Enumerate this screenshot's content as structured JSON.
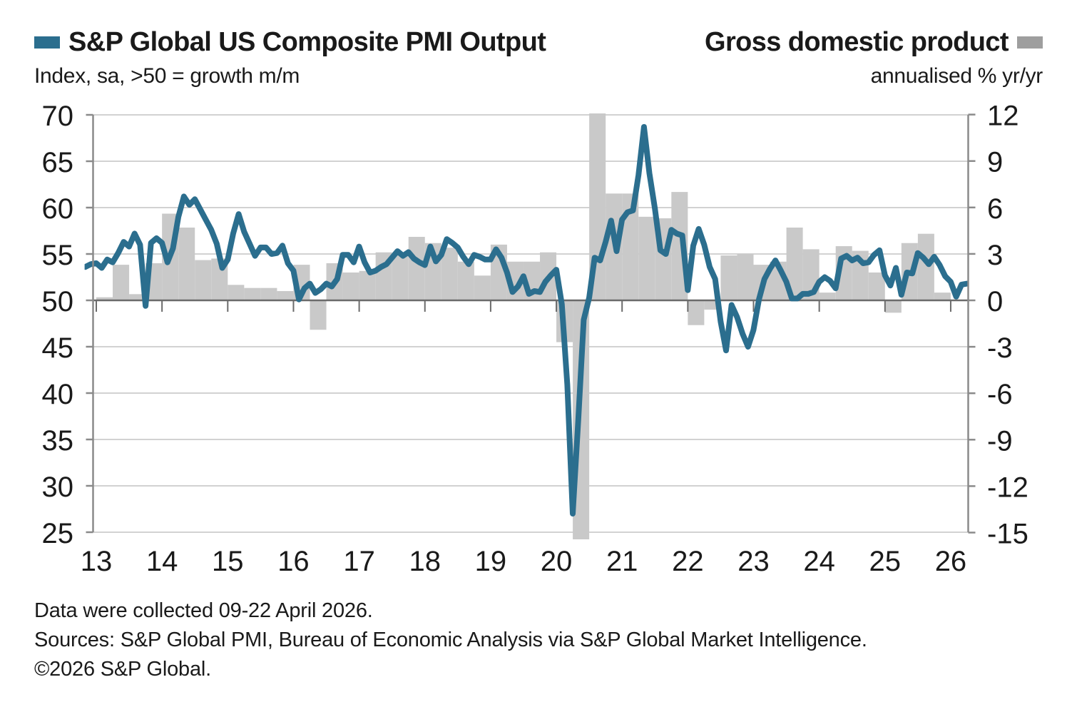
{
  "header": {
    "left": {
      "title": "S&P Global US Composite PMI Output",
      "subtitle": "Index, sa, >50 = growth m/m"
    },
    "right": {
      "title": "Gross domestic product",
      "subtitle": "annualised % yr/yr"
    }
  },
  "footer": {
    "line1": "Data were collected 09-22 April 2026.",
    "line2": "Sources: S&P Global PMI, Bureau of Economic Analysis via S&P Global Market Intelligence.",
    "line3": "©2026 S&P Global."
  },
  "colors": {
    "pmi_line": "#2B6E8E",
    "gdp_bar": "#C9C9C9",
    "gdp_legend_swatch": "#9E9E9E",
    "gridline": "#D2D2D2",
    "zero_line": "#6B6B6B",
    "axis": "#8A8A8A",
    "text": "#1A1A1A"
  },
  "chart_data": {
    "type": "line+bar",
    "title_left": "S&P Global US Composite PMI Output",
    "title_right": "Gross domestic product",
    "left_axis": {
      "label": "Index, sa, >50 = growth m/m",
      "range": [
        25,
        70
      ],
      "ticks": [
        70,
        65,
        60,
        55,
        50,
        45,
        40,
        35,
        30,
        25
      ]
    },
    "right_axis": {
      "label": "annualised % yr/yr",
      "range": [
        -15,
        12
      ],
      "ticks": [
        12,
        9,
        6,
        3,
        0,
        -3,
        -6,
        -9,
        -12,
        -15
      ]
    },
    "x_axis": {
      "tick_labels": [
        "13",
        "14",
        "15",
        "16",
        "17",
        "18",
        "19",
        "20",
        "21",
        "22",
        "23",
        "24",
        "25",
        "26"
      ]
    },
    "grid": true,
    "legend_position": "top",
    "series": [
      {
        "name": "S&P Global US Composite PMI Output",
        "type": "line",
        "axis": "left",
        "frequency": "monthly",
        "start": "2012-11",
        "end": "2026-04",
        "values": [
          53.6,
          53.9,
          54.0,
          53.5,
          54.4,
          54.1,
          55.1,
          56.3,
          55.8,
          57.2,
          56.0,
          49.4,
          56.2,
          56.7,
          56.2,
          54.1,
          55.6,
          59.0,
          61.2,
          60.3,
          60.9,
          59.8,
          58.7,
          57.6,
          56.1,
          53.5,
          54.4,
          57.2,
          59.3,
          57.4,
          56.1,
          54.8,
          55.7,
          55.7,
          55.0,
          55.1,
          55.9,
          54.0,
          53.2,
          50.1,
          51.3,
          51.8,
          50.8,
          51.2,
          51.8,
          51.5,
          52.3,
          54.9,
          54.9,
          54.1,
          55.8,
          54.1,
          53.0,
          53.2,
          53.6,
          53.9,
          54.6,
          55.3,
          54.8,
          55.2,
          54.5,
          54.1,
          53.8,
          55.8,
          54.2,
          54.9,
          56.6,
          56.2,
          55.7,
          54.7,
          53.9,
          54.9,
          54.7,
          54.4,
          54.4,
          55.5,
          54.6,
          53.0,
          50.9,
          51.5,
          52.6,
          50.7,
          51.0,
          50.9,
          52.0,
          52.7,
          53.3,
          49.6,
          40.9,
          27.0,
          37.0,
          47.9,
          50.3,
          54.6,
          54.3,
          56.3,
          58.6,
          55.3,
          58.7,
          59.5,
          59.7,
          63.5,
          68.7,
          63.7,
          59.9,
          55.4,
          55.0,
          57.6,
          57.2,
          57.0,
          51.1,
          55.9,
          57.7,
          56.0,
          53.6,
          52.3,
          47.7,
          44.6,
          49.5,
          48.2,
          46.4,
          45.0,
          46.8,
          50.1,
          52.3,
          53.4,
          54.3,
          53.2,
          52.0,
          50.2,
          50.2,
          50.7,
          50.7,
          50.9,
          52.0,
          52.5,
          52.1,
          51.3,
          54.5,
          54.8,
          54.3,
          54.6,
          54.0,
          54.1,
          54.9,
          55.4,
          52.7,
          51.6,
          53.5,
          50.6,
          53.0,
          52.9,
          55.1,
          54.6,
          53.9,
          54.7,
          53.8,
          52.6,
          52.0,
          50.4,
          51.7,
          51.8
        ]
      },
      {
        "name": "Gross domestic product",
        "type": "bar",
        "axis": "right",
        "frequency": "quarterly",
        "start": "2013-Q1",
        "end": "2025-Q4",
        "values": [
          0.2,
          2.3,
          0.4,
          2.4,
          5.6,
          4.7,
          2.6,
          2.7,
          1.0,
          0.8,
          0.8,
          0.6,
          2.3,
          -1.9,
          2.4,
          1.8,
          1.9,
          3.1,
          3.0,
          4.1,
          3.7,
          3.4,
          2.5,
          1.6,
          3.6,
          2.5,
          2.5,
          3.1,
          -2.7,
          -16.0,
          13.0,
          6.9,
          6.9,
          5.4,
          5.3,
          7.0,
          -1.6,
          -0.6,
          2.9,
          3.0,
          2.3,
          2.5,
          4.7,
          3.3,
          0.5,
          3.5,
          3.2,
          1.8,
          -0.8,
          3.7,
          4.3,
          0.5
        ]
      }
    ]
  }
}
